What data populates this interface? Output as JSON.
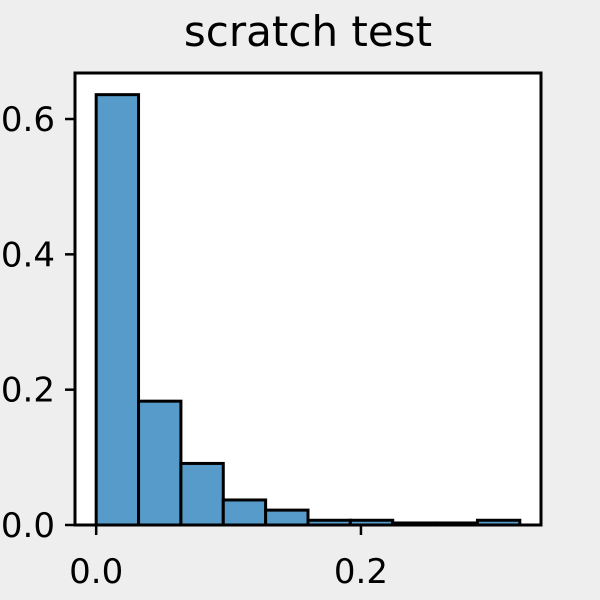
{
  "chart_data": {
    "type": "bar",
    "title": "scratch test",
    "xlabel": "",
    "ylabel": "",
    "bin_edges": [
      0.0,
      0.032,
      0.064,
      0.096,
      0.128,
      0.16,
      0.192,
      0.224,
      0.256,
      0.288,
      0.32
    ],
    "values": [
      0.636,
      0.183,
      0.091,
      0.037,
      0.022,
      0.007,
      0.007,
      0.003,
      0.003,
      0.007
    ],
    "xlim": [
      -0.016,
      0.336
    ],
    "ylim": [
      0.0,
      0.668
    ],
    "xticks": [
      0.0,
      0.2
    ],
    "xtick_labels": [
      "0.0",
      "0.2"
    ],
    "yticks": [
      0.0,
      0.2,
      0.4,
      0.6
    ],
    "ytick_labels": [
      "0.0",
      "0.2",
      "0.4",
      "0.6"
    ],
    "grid": false,
    "bar_color": "#569bc9",
    "edge_color": "#000000"
  }
}
